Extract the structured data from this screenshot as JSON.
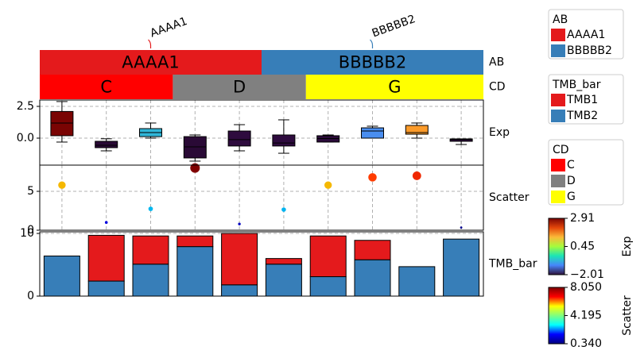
{
  "chart_data": [
    {
      "type": "category-bar",
      "name": "AB",
      "categories": [
        "AAAA1",
        "BBBBB2"
      ],
      "spans": [
        5,
        5
      ],
      "colors": [
        "#e41a1c",
        "#377eb8"
      ],
      "top_labels": true
    },
    {
      "type": "category-bar",
      "name": "CD",
      "categories": [
        "C",
        "D",
        "G"
      ],
      "spans": [
        3,
        3,
        4
      ],
      "colors": [
        "#ff0000",
        "#808080",
        "#ffff00"
      ]
    },
    {
      "type": "box",
      "name": "Exp",
      "whisker_high": [
        2.88,
        -0.05,
        1.19,
        0.25,
        1.06,
        1.44,
        0.25,
        0.94,
        1.19,
        -0.06
      ],
      "q3": [
        2.1,
        -0.25,
        0.75,
        0.12,
        0.56,
        0.25,
        0.19,
        0.81,
        1.0,
        -0.06
      ],
      "median": [
        1.19,
        -0.56,
        0.44,
        -0.69,
        -0.12,
        -0.38,
        -0.03,
        0.56,
        0.44,
        -0.12
      ],
      "q1": [
        0.19,
        -0.75,
        0.12,
        -1.56,
        -0.62,
        -0.62,
        -0.31,
        0.0,
        0.31,
        -0.25
      ],
      "whisker_low": [
        -0.31,
        -1.0,
        0.0,
        -1.81,
        -1.0,
        -1.19,
        -0.31,
        0.0,
        0.0,
        -0.5
      ],
      "colors": [
        "#7a0403",
        "#2a0a36",
        "#30b6d8",
        "#2a0a36",
        "#2e0b3e",
        "#2e0b3e",
        "#2b0b3a",
        "#4a8ef0",
        "#fb9b2a",
        "#2e0b3e"
      ],
      "ylim": [
        -2.125,
        3.0
      ],
      "yticks": [
        {
          "value": 0,
          "label": "0.0"
        },
        2.5
      ],
      "cbar_lim": [
        -2.01,
        2.91
      ],
      "cbar_ticks": [
        2.91,
        0.45,
        {
          "value": -2.01,
          "label": "−2.01"
        }
      ],
      "cmap": [
        "#30123b",
        "#4686fb",
        "#1be5b5",
        "#a4fc3c",
        "#fbb938",
        "#e4460a",
        "#7a0403"
      ]
    },
    {
      "type": "scatter",
      "name": "Scatter",
      "values": [
        5.8,
        1.0,
        2.75,
        8.0,
        0.8,
        2.65,
        5.8,
        6.8,
        7.0,
        0.34
      ],
      "colors": [
        "#f5b800",
        "#0000e0",
        "#00b8f0",
        "#800000",
        "#0000c0",
        "#00b4f0",
        "#f5b800",
        "#ff3c00",
        "#f02800",
        "#00008f"
      ],
      "ylim": [
        0,
        8.37
      ],
      "yticks": [
        0,
        5
      ],
      "cbar_lim": [
        0.34,
        8.05
      ],
      "cbar_ticks": [
        {
          "value": 8.05,
          "label": "8.050"
        },
        4.195,
        {
          "value": 0.34,
          "label": "0.340"
        }
      ],
      "cmap": [
        "#00007f",
        "#0000ff",
        "#00ffff",
        "#7fff7f",
        "#ffff00",
        "#ff0000",
        "#7f0000"
      ]
    },
    {
      "type": "stacked-bar",
      "name": "TMB_bar",
      "series": [
        {
          "name": "TMB1",
          "color": "#e41a1c",
          "values": [
            0,
            7.3,
            4.5,
            1.7,
            8.2,
            0.9,
            6.5,
            3.1,
            0,
            0
          ]
        },
        {
          "name": "TMB2",
          "color": "#377eb8",
          "values": [
            6.4,
            2.4,
            5.1,
            7.9,
            1.8,
            5.1,
            3.1,
            5.8,
            4.7,
            9.1
          ]
        }
      ],
      "ylim": [
        0,
        10.26
      ],
      "yticks": [
        0,
        10
      ]
    }
  ]
}
